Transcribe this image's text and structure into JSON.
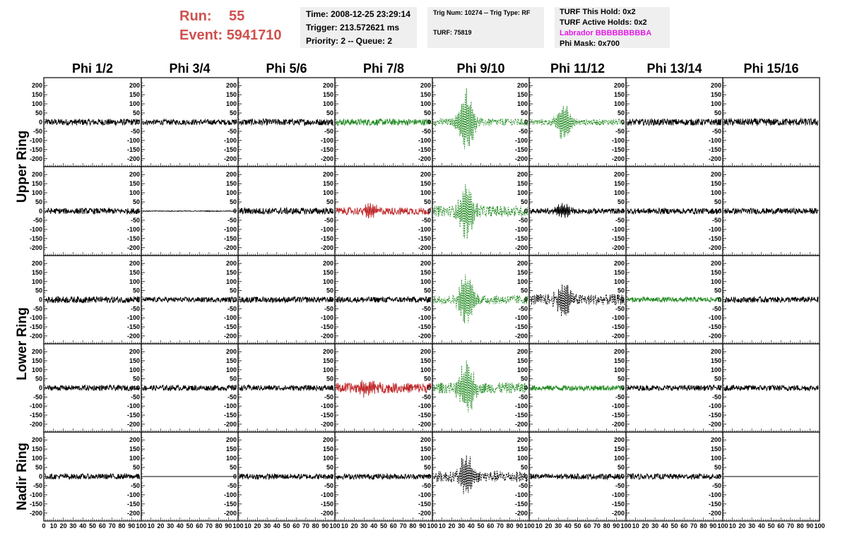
{
  "header": {
    "run_label": "Run:",
    "run_value": "55",
    "event_label": "Event:",
    "event_value": "5941710",
    "time": "Time: 2008-12-25 23:29:14",
    "trigger": "Trigger: 213.572621 ms",
    "priority": "Priority: 2 -- Queue: 2",
    "trig_num": "Trig Num: 10274 -- Trig Type: RF",
    "turf": "TURF: 75819",
    "turf_this_hold": "TURF This Hold: 0x2",
    "turf_active_holds": "TURF Active Holds: 0x2",
    "labrador": "Labrador BBBBBBBBBA",
    "phi_mask": "Phi Mask: 0x700"
  },
  "colors": {
    "red_text": "#d0504e",
    "magenta": "#e51ae5",
    "black_trace": "#000000",
    "green_trace": "#228b22",
    "red_trace": "#c0282a",
    "box_bg": "#efefef"
  },
  "chart_data": {
    "type": "line",
    "columns": [
      "Phi 1/2",
      "Phi 3/4",
      "Phi 5/6",
      "Phi 7/8",
      "Phi 9/10",
      "Phi 11/12",
      "Phi 13/14",
      "Phi 15/16"
    ],
    "ring_labels": [
      "Upper Ring",
      "Lower Ring",
      "Nadir Ring"
    ],
    "y_ticks": [
      200,
      150,
      100,
      50,
      0,
      -50,
      -100,
      -150,
      -200
    ],
    "ylim": [
      -220,
      220
    ],
    "xlim": [
      0,
      100
    ],
    "x_tick_labels": [
      "0",
      "10",
      "20",
      "30",
      "40",
      "50",
      "60",
      "70",
      "80",
      "90",
      "100"
    ],
    "row_groups": [
      "Upper Ring",
      "Upper Ring",
      "Lower Ring",
      "Lower Ring",
      "Nadir Ring"
    ],
    "panels": [
      [
        "black",
        "black",
        "black",
        "green",
        "green-dash",
        "green-dash",
        "black",
        "black"
      ],
      [
        "black",
        "black-flat",
        "black",
        "red",
        "green-dash",
        "black",
        "black",
        "black"
      ],
      [
        "black",
        "black",
        "black",
        "black",
        "green-dash",
        "black-dash",
        "green",
        "black"
      ],
      [
        "black",
        "black",
        "black",
        "red",
        "green-dash",
        "green",
        "black",
        "black"
      ],
      [
        "black",
        "flat",
        "black",
        "black",
        "black-dash",
        "black",
        "black",
        "flat"
      ]
    ],
    "amplitude": [
      [
        18,
        15,
        18,
        18,
        20,
        16,
        18,
        20
      ],
      [
        16,
        2,
        18,
        20,
        30,
        15,
        16,
        16
      ],
      [
        18,
        14,
        16,
        16,
        25,
        30,
        14,
        16
      ],
      [
        15,
        15,
        15,
        28,
        30,
        15,
        15,
        16
      ],
      [
        15,
        0,
        15,
        15,
        30,
        15,
        15,
        0
      ]
    ],
    "pulse_amplitude": [
      [
        0,
        0,
        0,
        0,
        180,
        110,
        0,
        0
      ],
      [
        0,
        0,
        0,
        40,
        150,
        40,
        0,
        0
      ],
      [
        0,
        0,
        0,
        0,
        160,
        100,
        0,
        0
      ],
      [
        0,
        0,
        0,
        50,
        150,
        0,
        0,
        0
      ],
      [
        0,
        0,
        0,
        0,
        120,
        0,
        0,
        0
      ]
    ],
    "pulse_center": 35
  }
}
